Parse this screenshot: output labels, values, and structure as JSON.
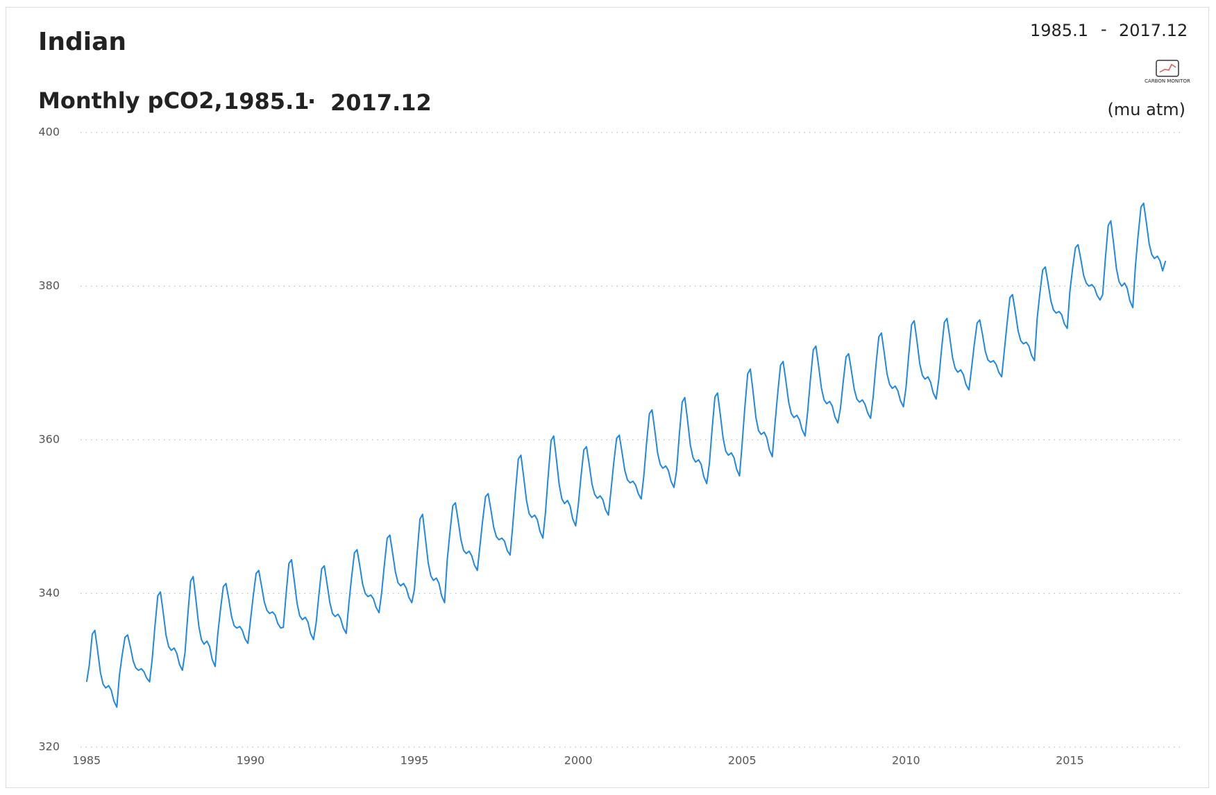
{
  "chart_data": {
    "type": "line",
    "title": "Indian",
    "subtitle": "Monthly pCO2,",
    "subtitle_start": "1985.1",
    "subtitle_separator": "·",
    "subtitle_end": "2017.12",
    "range_start": "1985.1",
    "range_separator": "-",
    "range_end": "2017.12",
    "logo": "CARBON MONITOR",
    "y_unit": "(mu atm)",
    "color": "#1e88e5",
    "grid": true,
    "xlim": [
      1984.6,
      2018.4
    ],
    "xticks": [
      1985,
      1990,
      1995,
      2000,
      2005,
      2010,
      2015
    ],
    "ylim": [
      320,
      400
    ],
    "yticks": [
      320,
      340,
      360,
      380,
      400
    ],
    "x": [
      1985,
      1985.08,
      1985.17,
      1985.25,
      1985.33,
      1985.42,
      1985.5,
      1985.58,
      1985.67,
      1985.75,
      1985.83,
      1985.92,
      1986,
      1986.08,
      1986.17,
      1986.25,
      1986.33,
      1986.42,
      1986.5,
      1986.58,
      1986.67,
      1986.75,
      1986.83,
      1986.92,
      1987,
      1987.08,
      1987.17,
      1987.25,
      1987.33,
      1987.42,
      1987.5,
      1987.58,
      1987.67,
      1987.75,
      1987.83,
      1987.92,
      1988,
      1988.08,
      1988.17,
      1988.25,
      1988.33,
      1988.42,
      1988.5,
      1988.58,
      1988.67,
      1988.75,
      1988.83,
      1988.92,
      1989,
      1989.08,
      1989.17,
      1989.25,
      1989.33,
      1989.42,
      1989.5,
      1989.58,
      1989.67,
      1989.75,
      1989.83,
      1989.92,
      1990,
      1990.08,
      1990.17,
      1990.25,
      1990.33,
      1990.42,
      1990.5,
      1990.58,
      1990.67,
      1990.75,
      1990.83,
      1990.92,
      1991,
      1991.08,
      1991.17,
      1991.25,
      1991.33,
      1991.42,
      1991.5,
      1991.58,
      1991.67,
      1991.75,
      1991.83,
      1991.92,
      1992,
      1992.08,
      1992.17,
      1992.25,
      1992.33,
      1992.42,
      1992.5,
      1992.58,
      1992.67,
      1992.75,
      1992.83,
      1992.92,
      1993,
      1993.08,
      1993.17,
      1993.25,
      1993.33,
      1993.42,
      1993.5,
      1993.58,
      1993.67,
      1993.75,
      1993.83,
      1993.92,
      1994,
      1994.08,
      1994.17,
      1994.25,
      1994.33,
      1994.42,
      1994.5,
      1994.58,
      1994.67,
      1994.75,
      1994.83,
      1994.92,
      1995,
      1995.08,
      1995.17,
      1995.25,
      1995.33,
      1995.42,
      1995.5,
      1995.58,
      1995.67,
      1995.75,
      1995.83,
      1995.92,
      1996,
      1996.08,
      1996.17,
      1996.25,
      1996.33,
      1996.42,
      1996.5,
      1996.58,
      1996.67,
      1996.75,
      1996.83,
      1996.92,
      1997,
      1997.08,
      1997.17,
      1997.25,
      1997.33,
      1997.42,
      1997.5,
      1997.58,
      1997.67,
      1997.75,
      1997.83,
      1997.92,
      1998,
      1998.08,
      1998.17,
      1998.25,
      1998.33,
      1998.42,
      1998.5,
      1998.58,
      1998.67,
      1998.75,
      1998.83,
      1998.92,
      1999,
      1999.08,
      1999.17,
      1999.25,
      1999.33,
      1999.42,
      1999.5,
      1999.58,
      1999.67,
      1999.75,
      1999.83,
      1999.92,
      2000,
      2000.08,
      2000.17,
      2000.25,
      2000.33,
      2000.42,
      2000.5,
      2000.58,
      2000.67,
      2000.75,
      2000.83,
      2000.92,
      2001,
      2001.08,
      2001.17,
      2001.25,
      2001.33,
      2001.42,
      2001.5,
      2001.58,
      2001.67,
      2001.75,
      2001.83,
      2001.92,
      2002,
      2002.08,
      2002.17,
      2002.25,
      2002.33,
      2002.42,
      2002.5,
      2002.58,
      2002.67,
      2002.75,
      2002.83,
      2002.92,
      2003,
      2003.08,
      2003.17,
      2003.25,
      2003.33,
      2003.42,
      2003.5,
      2003.58,
      2003.67,
      2003.75,
      2003.83,
      2003.92,
      2004,
      2004.08,
      2004.17,
      2004.25,
      2004.33,
      2004.42,
      2004.5,
      2004.58,
      2004.67,
      2004.75,
      2004.83,
      2004.92,
      2005,
      2005.08,
      2005.17,
      2005.25,
      2005.33,
      2005.42,
      2005.5,
      2005.58,
      2005.67,
      2005.75,
      2005.83,
      2005.92,
      2006,
      2006.08,
      2006.17,
      2006.25,
      2006.33,
      2006.42,
      2006.5,
      2006.58,
      2006.67,
      2006.75,
      2006.83,
      2006.92,
      2007,
      2007.08,
      2007.17,
      2007.25,
      2007.33,
      2007.42,
      2007.5,
      2007.58,
      2007.67,
      2007.75,
      2007.83,
      2007.92,
      2008,
      2008.08,
      2008.17,
      2008.25,
      2008.33,
      2008.42,
      2008.5,
      2008.58,
      2008.67,
      2008.75,
      2008.83,
      2008.92,
      2009,
      2009.08,
      2009.17,
      2009.25,
      2009.33,
      2009.42,
      2009.5,
      2009.58,
      2009.67,
      2009.75,
      2009.83,
      2009.92,
      2010,
      2010.08,
      2010.17,
      2010.25,
      2010.33,
      2010.42,
      2010.5,
      2010.58,
      2010.67,
      2010.75,
      2010.83,
      2010.92,
      2011,
      2011.08,
      2011.17,
      2011.25,
      2011.33,
      2011.42,
      2011.5,
      2011.58,
      2011.67,
      2011.75,
      2011.83,
      2011.92,
      2012,
      2012.08,
      2012.17,
      2012.25,
      2012.33,
      2012.42,
      2012.5,
      2012.58,
      2012.67,
      2012.75,
      2012.83,
      2012.92,
      2013,
      2013.08,
      2013.17,
      2013.25,
      2013.33,
      2013.42,
      2013.5,
      2013.58,
      2013.67,
      2013.75,
      2013.83,
      2013.92,
      2014,
      2014.08,
      2014.17,
      2014.25,
      2014.33,
      2014.42,
      2014.5,
      2014.58,
      2014.67,
      2014.75,
      2014.83,
      2014.92,
      2015,
      2015.08,
      2015.17,
      2015.25,
      2015.33,
      2015.42,
      2015.5,
      2015.58,
      2015.67,
      2015.75,
      2015.83,
      2015.92,
      2016,
      2016.08,
      2016.17,
      2016.25,
      2016.33,
      2016.42,
      2016.5,
      2016.58,
      2016.67,
      2016.75,
      2016.83,
      2016.92,
      2017,
      2017.08,
      2017.17,
      2017.25,
      2017.33,
      2017.42,
      2017.5,
      2017.58,
      2017.67,
      2017.75,
      2017.83,
      2017.92
    ],
    "values": [
      328.5,
      330.7,
      334.7,
      335.2,
      332.7,
      329.7,
      328.2,
      327.7,
      328.0,
      327.4,
      326.0,
      325.2,
      329.4,
      331.9,
      334.3,
      334.6,
      333.1,
      331.2,
      330.3,
      330.0,
      330.2,
      329.8,
      329.0,
      328.5,
      331.5,
      335.6,
      339.7,
      340.2,
      337.7,
      334.6,
      333.1,
      332.6,
      332.9,
      332.2,
      330.8,
      330.0,
      332.3,
      336.9,
      341.6,
      342.2,
      339.3,
      335.8,
      334.0,
      333.4,
      333.8,
      333.1,
      331.4,
      330.5,
      334.7,
      337.8,
      340.9,
      341.3,
      339.4,
      337.0,
      335.8,
      335.5,
      335.7,
      335.2,
      334.1,
      333.5,
      336.6,
      339.6,
      342.6,
      343.0,
      341.1,
      338.9,
      337.8,
      337.4,
      337.6,
      337.2,
      336.1,
      335.5,
      335.6,
      339.7,
      343.9,
      344.4,
      341.8,
      338.7,
      337.1,
      336.6,
      336.9,
      336.3,
      334.8,
      334.0,
      336.1,
      339.6,
      343.2,
      343.6,
      341.4,
      338.8,
      337.4,
      337.0,
      337.3,
      336.7,
      335.5,
      334.8,
      338.7,
      342.0,
      345.3,
      345.7,
      343.7,
      341.2,
      340.0,
      339.6,
      339.8,
      339.3,
      338.2,
      337.5,
      340.1,
      343.6,
      347.2,
      347.6,
      345.4,
      342.8,
      341.4,
      341.0,
      341.3,
      340.7,
      339.5,
      338.8,
      340.5,
      345.1,
      349.7,
      350.3,
      347.4,
      344.0,
      342.3,
      341.7,
      342.0,
      341.3,
      339.7,
      338.8,
      344.3,
      347.8,
      351.4,
      351.8,
      349.6,
      347.0,
      345.6,
      345.2,
      345.5,
      344.9,
      343.7,
      343.0,
      346.2,
      349.4,
      352.6,
      353.0,
      351.0,
      348.6,
      347.4,
      347.0,
      347.2,
      346.8,
      345.6,
      345.0,
      348.8,
      353.1,
      357.5,
      358.0,
      355.3,
      352.1,
      350.4,
      349.9,
      350.2,
      349.6,
      348.1,
      347.2,
      350.6,
      355.2,
      359.9,
      360.5,
      357.6,
      354.1,
      352.3,
      351.7,
      352.1,
      351.4,
      349.7,
      348.8,
      351.5,
      355.1,
      358.7,
      359.1,
      356.9,
      354.2,
      352.9,
      352.4,
      352.7,
      352.2,
      350.9,
      350.2,
      353.5,
      356.9,
      360.2,
      360.6,
      358.5,
      356.0,
      354.8,
      354.4,
      354.6,
      354.1,
      353.0,
      352.3,
      355.3,
      359.4,
      363.4,
      363.9,
      361.4,
      358.3,
      356.8,
      356.3,
      356.6,
      356.0,
      354.6,
      353.8,
      356.0,
      360.5,
      364.9,
      365.5,
      362.7,
      359.3,
      357.7,
      357.1,
      357.4,
      356.8,
      355.2,
      354.3,
      356.9,
      361.2,
      365.6,
      366.1,
      363.4,
      360.2,
      358.5,
      358.0,
      358.3,
      357.7,
      356.2,
      355.3,
      359.5,
      364.1,
      368.6,
      369.2,
      366.4,
      362.9,
      361.2,
      360.7,
      361.0,
      360.3,
      358.7,
      357.8,
      362.0,
      365.8,
      369.7,
      370.2,
      367.8,
      364.9,
      363.4,
      362.9,
      363.2,
      362.6,
      361.3,
      360.5,
      363.7,
      367.7,
      371.7,
      372.2,
      369.7,
      366.7,
      365.2,
      364.7,
      365.0,
      364.4,
      363.0,
      362.2,
      364.1,
      367.4,
      370.8,
      371.2,
      369.1,
      366.6,
      365.3,
      364.9,
      365.2,
      364.6,
      363.5,
      362.8,
      365.7,
      369.6,
      373.4,
      373.9,
      371.5,
      368.6,
      367.2,
      366.7,
      367.0,
      366.4,
      365.1,
      364.3,
      366.8,
      370.9,
      375.0,
      375.5,
      373.0,
      369.9,
      368.4,
      367.9,
      368.2,
      367.5,
      366.1,
      365.3,
      367.9,
      371.6,
      375.3,
      375.8,
      373.5,
      370.7,
      369.3,
      368.8,
      369.1,
      368.5,
      367.2,
      366.5,
      369.3,
      372.3,
      375.2,
      375.6,
      373.8,
      371.5,
      370.4,
      370.1,
      370.3,
      369.8,
      368.8,
      368.2,
      371.6,
      375.0,
      378.5,
      378.9,
      376.8,
      374.2,
      372.9,
      372.5,
      372.7,
      372.2,
      371.0,
      370.3,
      375.7,
      378.9,
      382.1,
      382.5,
      380.5,
      378.1,
      376.9,
      376.5,
      376.7,
      376.3,
      375.1,
      374.5,
      379.3,
      382.2,
      385.0,
      385.4,
      383.6,
      381.4,
      380.4,
      380.0,
      380.2,
      379.8,
      378.8,
      378.2,
      378.9,
      383.4,
      387.9,
      388.5,
      385.7,
      382.3,
      380.6,
      380.0,
      380.4,
      379.7,
      378.1,
      377.2,
      382.6,
      386.5,
      390.3,
      390.8,
      388.4,
      385.5,
      384.1,
      383.6,
      383.9,
      383.3,
      382.0,
      383.3
    ]
  }
}
